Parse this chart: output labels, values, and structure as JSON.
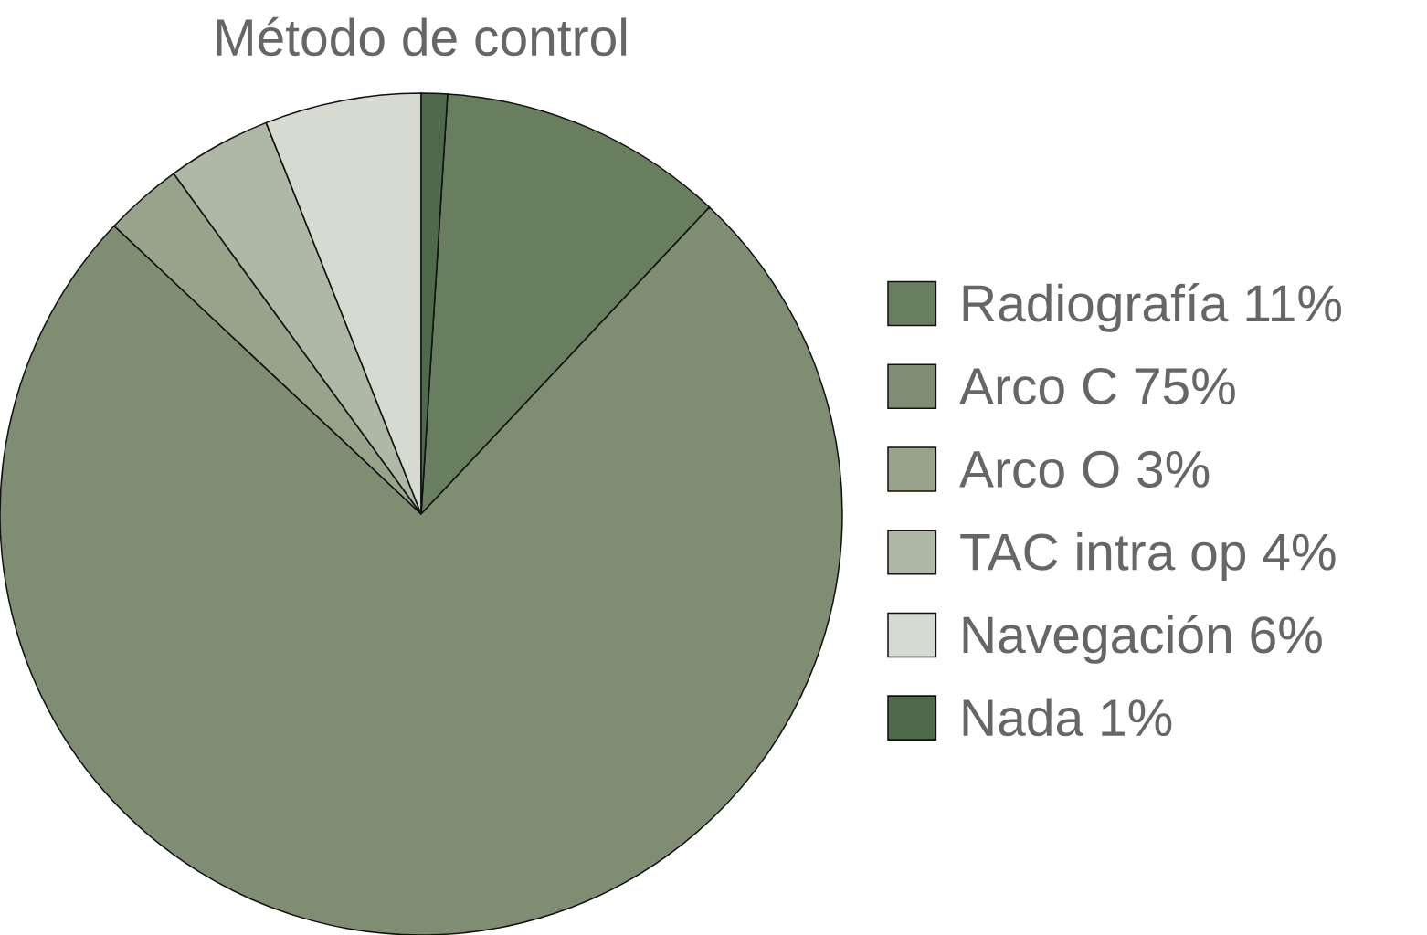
{
  "chart_data": {
    "type": "pie",
    "title": "Método de control",
    "categories": [
      "Radiografía 11%",
      "Arco C 75%",
      "Arco O 3%",
      "TAC intra op 4%",
      "Navegación 6%",
      "Nada 1%"
    ],
    "values": [
      11,
      75,
      3,
      4,
      6,
      1
    ],
    "colors": [
      "#687e5f",
      "#7f8e73",
      "#97a38b",
      "#afb8a7",
      "#d6dad1",
      "#4e6a4a"
    ],
    "legend": "right"
  }
}
